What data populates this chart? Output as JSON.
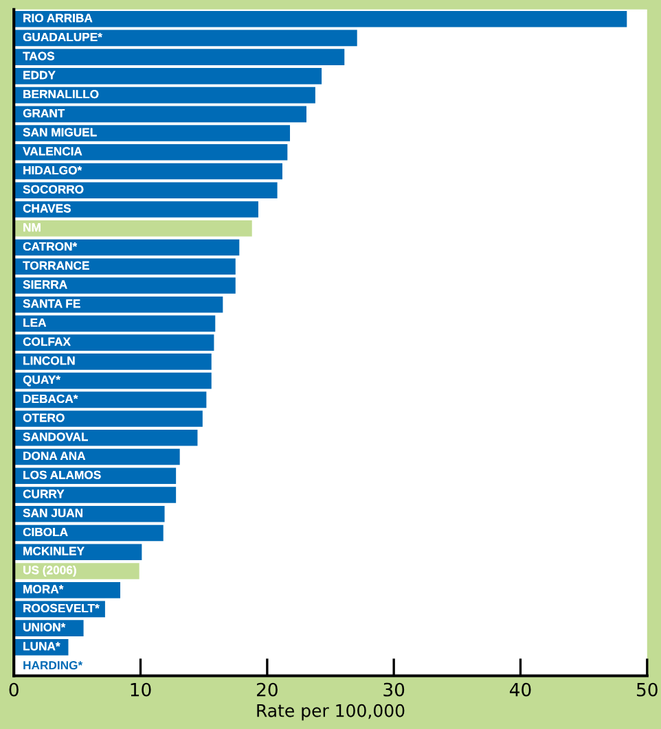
{
  "chart_data": {
    "type": "bar",
    "orientation": "horizontal",
    "xlabel": "Rate per 100,000",
    "categories": [
      "RIO ARRIBA",
      "GUADALUPE*",
      "TAOS",
      "EDDY",
      "BERNALILLO",
      "GRANT",
      "SAN MIGUEL",
      "VALENCIA",
      "HIDALGO*",
      "SOCORRO",
      "CHAVES",
      "NM",
      "CATRON*",
      "TORRANCE",
      "SIERRA",
      "SANTA FE",
      "LEA",
      "COLFAX",
      "LINCOLN",
      "QUAY*",
      "DEBACA*",
      "OTERO",
      "SANDOVAL",
      "DONA ANA",
      "LOS ALAMOS",
      "CURRY",
      "SAN JUAN",
      "CIBOLA",
      "MCKINLEY",
      "US (2006)",
      "MORA*",
      "ROOSEVELT*",
      "UNION*",
      "LUNA*",
      "HARDING*"
    ],
    "values": [
      48.4,
      27.1,
      26.1,
      24.3,
      23.8,
      23.1,
      21.8,
      21.6,
      21.2,
      20.8,
      19.3,
      18.8,
      17.8,
      17.5,
      17.5,
      16.5,
      15.9,
      15.8,
      15.6,
      15.6,
      15.2,
      14.9,
      14.5,
      13.1,
      12.8,
      12.8,
      11.9,
      11.8,
      10.1,
      9.9,
      8.4,
      7.2,
      5.5,
      4.3,
      0
    ],
    "colors": [
      "#006bb6",
      "#006bb6",
      "#006bb6",
      "#006bb6",
      "#006bb6",
      "#006bb6",
      "#006bb6",
      "#006bb6",
      "#006bb6",
      "#006bb6",
      "#006bb6",
      "#c2dc94",
      "#006bb6",
      "#006bb6",
      "#006bb6",
      "#006bb6",
      "#006bb6",
      "#006bb6",
      "#006bb6",
      "#006bb6",
      "#006bb6",
      "#006bb6",
      "#006bb6",
      "#006bb6",
      "#006bb6",
      "#006bb6",
      "#006bb6",
      "#006bb6",
      "#006bb6",
      "#c2dc94",
      "#006bb6",
      "#006bb6",
      "#006bb6",
      "#006bb6",
      "#006bb6"
    ],
    "xlim": [
      0,
      50
    ],
    "xticks": [
      0,
      10,
      20,
      30,
      40,
      50
    ],
    "grid": false,
    "tick_labels": "x"
  }
}
